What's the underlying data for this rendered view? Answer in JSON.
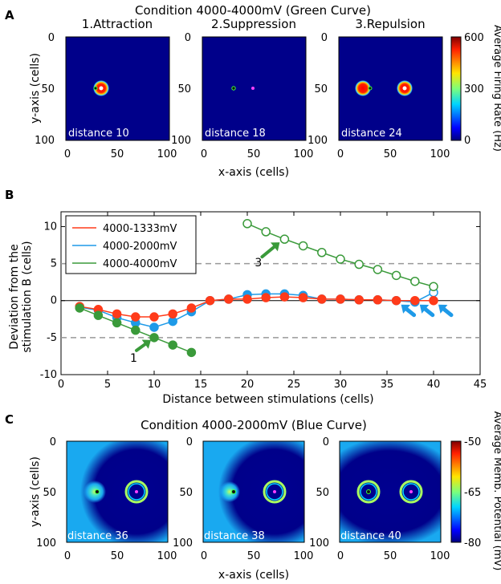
{
  "panel_a": {
    "letter": "A",
    "title": "Condition 4000-4000mV (Green Curve)",
    "subplot_titles": [
      "1.Attraction",
      "2.Suppression",
      "3.Repulsion"
    ],
    "distances": [
      "distance 10",
      "distance 18",
      "distance 24"
    ],
    "ylabel": "y-axis (cells)",
    "xlabel": "x-axis (cells)",
    "x_ticks": [
      "0",
      "50",
      "100"
    ],
    "y_ticks": [
      "0",
      "50",
      "100"
    ],
    "colorbar": {
      "label": "Average Firing Rate (Hz)",
      "ticks": [
        "600",
        "300",
        "0"
      ]
    }
  },
  "panel_b": {
    "letter": "B"
  },
  "panel_c": {
    "letter": "C",
    "title": "Condition 4000-2000mV (Blue Curve)",
    "distances": [
      "distance 36",
      "distance 38",
      "distance 40"
    ],
    "ylabel": "y-axis (cells)",
    "xlabel": "x-axis (cells)",
    "x_ticks": [
      "0",
      "50",
      "100"
    ],
    "y_ticks": [
      "0",
      "50",
      "100"
    ],
    "colorbar": {
      "label": "Average Memb. Potential (mV)",
      "ticks": [
        "-50",
        "-65",
        "-80"
      ]
    }
  },
  "chart_data": {
    "type": "line",
    "ylabel": "Deviation from the stimulation B (cells)",
    "xlabel": "Distance between stimulations (cells)",
    "xlim": [
      0,
      45
    ],
    "ylim": [
      -10,
      12
    ],
    "x_ticks": [
      0,
      5,
      10,
      15,
      20,
      25,
      30,
      35,
      40,
      45
    ],
    "y_ticks": [
      -10,
      -5,
      0,
      5,
      10
    ],
    "reference_lines": [
      5,
      -5
    ],
    "series": [
      {
        "name": "4000-1333mV",
        "color": "#ff3b1a",
        "x": [
          2,
          4,
          6,
          8,
          10,
          12,
          14,
          16,
          18,
          20,
          22,
          24,
          26,
          28,
          30,
          32,
          34,
          36,
          38,
          40
        ],
        "y": [
          -0.8,
          -1.2,
          -1.8,
          -2.2,
          -2.2,
          -1.8,
          -1.0,
          0,
          0.2,
          0.2,
          0.4,
          0.5,
          0.4,
          0.2,
          0.2,
          0.1,
          0.1,
          0,
          0,
          0
        ]
      },
      {
        "name": "4000-2000mV",
        "color": "#1e9ae8",
        "x": [
          2,
          4,
          6,
          8,
          10,
          12,
          14,
          16,
          18,
          20,
          22,
          24,
          26,
          28,
          30,
          32,
          34,
          36,
          38,
          40
        ],
        "y": [
          -0.9,
          -1.3,
          -2.3,
          -3.0,
          -3.6,
          -2.8,
          -1.5,
          0,
          0.2,
          0.8,
          0.9,
          0.9,
          0.7,
          0.2,
          0.2,
          0.1,
          0.1,
          0,
          -0.2,
          1.1
        ]
      },
      {
        "name": "4000-4000mV",
        "color": "#3a9a3a",
        "segments": [
          {
            "x": [
              2,
              4,
              6,
              8,
              10,
              12,
              14
            ],
            "y": [
              -1.0,
              -2.0,
              -3.0,
              -4.0,
              -5.0,
              -6.0,
              -7.0
            ]
          },
          {
            "x": [
              20,
              22,
              24,
              26,
              28,
              30,
              32,
              34,
              36,
              38,
              40
            ],
            "y": [
              10.4,
              9.3,
              8.3,
              7.4,
              6.5,
              5.6,
              4.9,
              4.2,
              3.4,
              2.6,
              1.9
            ]
          }
        ]
      }
    ],
    "annotations": [
      {
        "label": "1",
        "x": 10,
        "y": -5.0
      },
      {
        "label": "3",
        "x": 24,
        "y": 8.3
      }
    ],
    "blue_arrows_at_x": [
      36,
      38,
      40
    ]
  }
}
